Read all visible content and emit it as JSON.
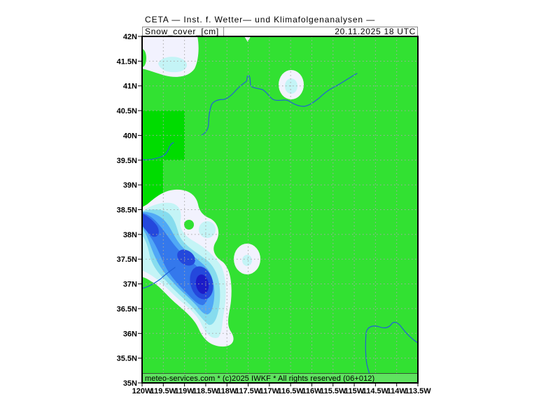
{
  "header": {
    "title": "CETA — Inst. f. Wetter— und Klimafolgenanalysen —",
    "variable": "Snow_cover_[cm]",
    "valid_time": "20.11.2025 18 UTC"
  },
  "map": {
    "lon_range": [
      -120,
      -113.5
    ],
    "lat_range": [
      35,
      42
    ],
    "grid_visible": true,
    "lat_labels": [
      {
        "value": 42,
        "label": "42N"
      },
      {
        "value": 41.5,
        "label": "41.5N"
      },
      {
        "value": 41,
        "label": "41N"
      },
      {
        "value": 40.5,
        "label": "40.5N"
      },
      {
        "value": 40,
        "label": "40N"
      },
      {
        "value": 39.5,
        "label": "39.5N"
      },
      {
        "value": 39,
        "label": "39N"
      },
      {
        "value": 38.5,
        "label": "38.5N"
      },
      {
        "value": 38,
        "label": "38N"
      },
      {
        "value": 37.5,
        "label": "37.5N"
      },
      {
        "value": 37,
        "label": "37N"
      },
      {
        "value": 36.5,
        "label": "36.5N"
      },
      {
        "value": 36,
        "label": "36N"
      },
      {
        "value": 35.5,
        "label": "35.5N"
      },
      {
        "value": 35,
        "label": "35N"
      }
    ],
    "lon_labels": [
      {
        "value": -120,
        "label": "120W"
      },
      {
        "value": -119.5,
        "label": "119.5W"
      },
      {
        "value": -119,
        "label": "119W"
      },
      {
        "value": -118.5,
        "label": "118.5W"
      },
      {
        "value": -118,
        "label": "118W"
      },
      {
        "value": -117.5,
        "label": "117.5W"
      },
      {
        "value": -117,
        "label": "117W"
      },
      {
        "value": -116.5,
        "label": "116.5W"
      },
      {
        "value": -116,
        "label": "116W"
      },
      {
        "value": -115.5,
        "label": "115.5W"
      },
      {
        "value": -115,
        "label": "115W"
      },
      {
        "value": -114.5,
        "label": "114.5W"
      },
      {
        "value": -114,
        "label": "114W"
      },
      {
        "value": -113.5,
        "label": "113.5W"
      }
    ],
    "colors": {
      "no_snow": "#32e132",
      "masked": "#00dc00",
      "snow_levels": [
        "#f2f2fe",
        "#c4f4f6",
        "#86dcee",
        "#50a8f6",
        "#3478ec",
        "#2448dc",
        "#1c1cc8"
      ],
      "rivers": "#2060d8",
      "grid": "#a8a8a8",
      "footer_strip": "#5fe35f",
      "header_frame": "#8c8c8c"
    }
  },
  "footer": {
    "credit": "meteo-services.com * (c)2025 IWKF * All rights reserved (06+012)"
  }
}
